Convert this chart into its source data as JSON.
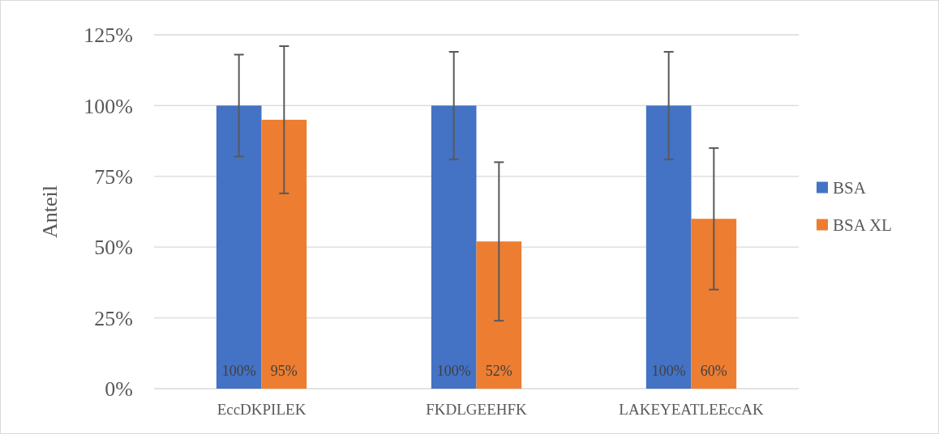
{
  "chart_data": {
    "type": "bar",
    "ylabel": "Anteil",
    "categories": [
      "EccDKPILEK",
      "FKDLGEEHFK",
      "LAKEYEATLEEccAK"
    ],
    "series": [
      {
        "name": "BSA",
        "color": "#4472c4",
        "values": [
          100,
          100,
          100
        ],
        "errors": [
          18,
          19,
          19
        ],
        "value_labels": [
          "100%",
          "100%",
          "100%"
        ]
      },
      {
        "name": "BSA XL",
        "color": "#ed7d31",
        "values": [
          95,
          52,
          60
        ],
        "errors": [
          26,
          28,
          25
        ],
        "value_labels": [
          "95%",
          "52%",
          "60%"
        ]
      }
    ],
    "ylim": [
      0,
      125
    ],
    "yticks": [
      {
        "value": 0,
        "label": "0%"
      },
      {
        "value": 25,
        "label": "25%"
      },
      {
        "value": 50,
        "label": "50%"
      },
      {
        "value": 75,
        "label": "75%"
      },
      {
        "value": 100,
        "label": "100%"
      },
      {
        "value": 125,
        "label": "125%"
      }
    ],
    "grid": "y",
    "legend": "right"
  }
}
